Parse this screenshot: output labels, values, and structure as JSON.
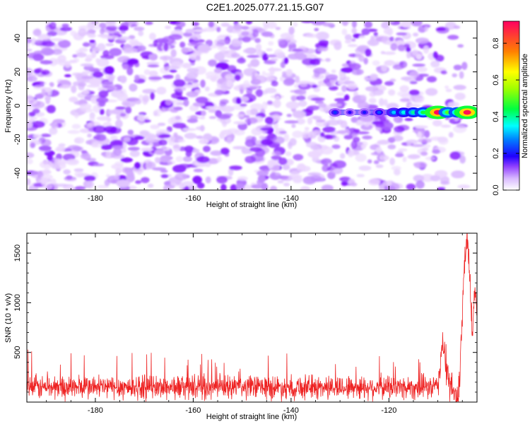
{
  "title": "C2E1.2025.077.21.15.G07",
  "chart_data": [
    {
      "type": "heatmap",
      "xlabel": "Height of straight line (km)",
      "ylabel": "Frequency (Hz)",
      "xlim": [
        -194,
        -102
      ],
      "ylim": [
        -50,
        50
      ],
      "xticks": [
        -180,
        -160,
        -140,
        -120
      ],
      "yticks": [
        -40,
        -20,
        0,
        20,
        40
      ],
      "colorbar": {
        "label": "Normalized spectral amplitude",
        "range": [
          0,
          0.92
        ],
        "ticks": [
          0.0,
          0.2,
          0.4,
          0.6,
          0.8
        ],
        "colors": [
          "#ffffff",
          "#e8d0ff",
          "#b070ff",
          "#7a00ff",
          "#0000ff",
          "#00c0ff",
          "#00ffff",
          "#00ff00",
          "#ffff00",
          "#ff8000",
          "#ff0060"
        ]
      },
      "signal": {
        "frequency": -4,
        "points": [
          {
            "x": -131,
            "amp": 0.22
          },
          {
            "x": -128,
            "amp": 0.18
          },
          {
            "x": -125,
            "amp": 0.2
          },
          {
            "x": -122,
            "amp": 0.24
          },
          {
            "x": -119,
            "amp": 0.32
          },
          {
            "x": -117,
            "amp": 0.36
          },
          {
            "x": -115,
            "amp": 0.4
          },
          {
            "x": -113,
            "amp": 0.45
          },
          {
            "x": -110,
            "amp": 0.92
          },
          {
            "x": -108,
            "amp": 0.5
          },
          {
            "x": -106,
            "amp": 0.48
          },
          {
            "x": -104,
            "amp": 0.9
          }
        ]
      }
    },
    {
      "type": "line",
      "xlabel": "Height of straight line (km)",
      "ylabel": "SNR (10 * v/v)",
      "xlim": [
        -194,
        -102
      ],
      "ylim": [
        0,
        1700
      ],
      "xticks": [
        -180,
        -160,
        -140,
        -120
      ],
      "yticks": [
        500,
        1000,
        1500
      ],
      "color": "#ee2222",
      "series": [
        {
          "x": [
            -194,
            -110,
            -109.5,
            -109,
            -108.5,
            -108,
            -107.5,
            -107,
            -106.5,
            -106,
            -105.5,
            -105,
            -104.5,
            -104,
            -103.5,
            -103,
            -102.5,
            -102
          ],
          "y": [
            150,
            150,
            420,
            600,
            420,
            250,
            150,
            120,
            80,
            30,
            250,
            900,
            1400,
            1650,
            1300,
            700,
            1100,
            1000
          ]
        }
      ]
    }
  ]
}
